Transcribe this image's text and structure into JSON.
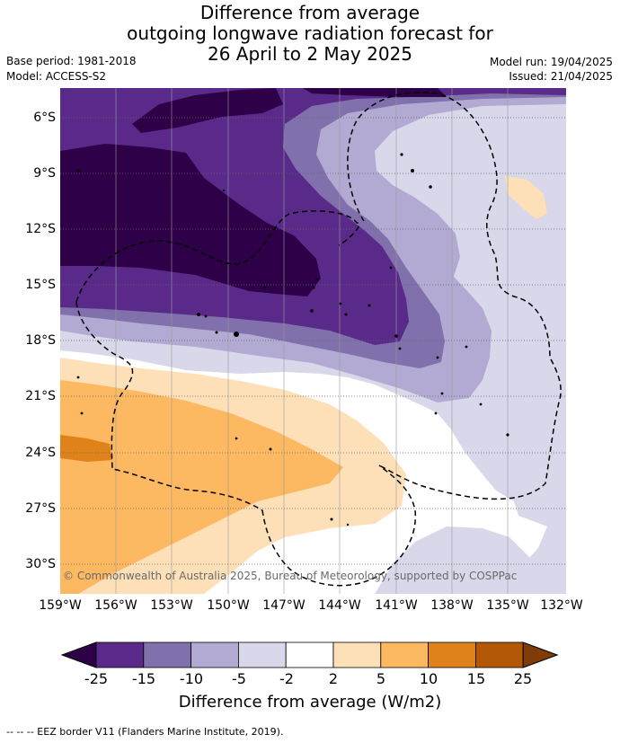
{
  "title_lines": [
    "Difference from average",
    "outgoing longwave radiation forecast for",
    "26 April to 2 May 2025"
  ],
  "base_period": "Base period: 1981-2018",
  "model": "Model: ACCESS-S2",
  "model_run": "Model run: 19/04/2025",
  "issued": "Issued: 21/04/2025",
  "copyright": "© Commonwealth of Australia 2025, Bureau of Meteorology, supported by COSPPac",
  "lat_ticks": [
    "6°S",
    "9°S",
    "12°S",
    "15°S",
    "18°S",
    "21°S",
    "24°S",
    "27°S",
    "30°S"
  ],
  "lon_ticks": [
    "159°W",
    "156°W",
    "153°W",
    "150°W",
    "147°W",
    "144°W",
    "141°W",
    "138°W",
    "135°W",
    "132°W"
  ],
  "colorbar": {
    "ticks": [
      "-25",
      "-15",
      "-10",
      "-5",
      "-2",
      "2",
      "5",
      "10",
      "15",
      "25"
    ],
    "colors": [
      "#5a2a8a",
      "#8070ac",
      "#b2aad2",
      "#d8d8ea",
      "#ffffff",
      "#fde0b8",
      "#fdb862",
      "#e0821a",
      "#b35806"
    ],
    "under_color": "#2d0048",
    "over_color": "#7f3b08",
    "label": "Difference from average (W/m2)"
  },
  "footnote": "--  --  -- EEZ border V11 (Flanders Marine Institute, 2019)."
}
